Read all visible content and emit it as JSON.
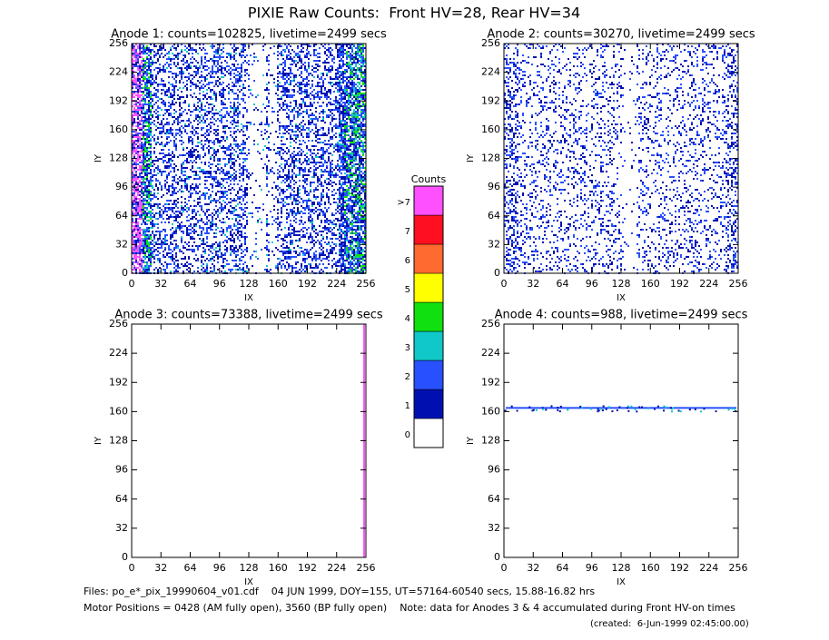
{
  "title": "PIXIE Raw Counts:  Front HV=28, Rear HV=34",
  "chart_data": [
    {
      "type": "image",
      "title": "Anode 1: counts=102825, livetime=2499 secs",
      "xlabel": "IX",
      "ylabel": "IY",
      "xlim": [
        0,
        256
      ],
      "ylim": [
        0,
        256
      ],
      "xticks": [
        0,
        32,
        64,
        96,
        128,
        160,
        192,
        224,
        256
      ],
      "yticks": [
        0,
        32,
        64,
        96,
        128,
        160,
        192,
        224,
        256
      ]
    },
    {
      "type": "image",
      "title": "Anode 2: counts=30270, livetime=2499 secs",
      "xlabel": "IX",
      "ylabel": "IY",
      "xlim": [
        0,
        256
      ],
      "ylim": [
        0,
        256
      ],
      "xticks": [
        0,
        32,
        64,
        96,
        128,
        160,
        192,
        224,
        256
      ],
      "yticks": [
        0,
        32,
        64,
        96,
        128,
        160,
        192,
        224,
        256
      ]
    },
    {
      "type": "image",
      "title": "Anode 3: counts=73388, livetime=2499 secs",
      "xlabel": "IX",
      "ylabel": "IY",
      "xlim": [
        0,
        256
      ],
      "ylim": [
        0,
        256
      ],
      "xticks": [
        0,
        32,
        64,
        96,
        128,
        160,
        192,
        224,
        256
      ],
      "yticks": [
        0,
        32,
        64,
        96,
        128,
        160,
        192,
        224,
        256
      ]
    },
    {
      "type": "image",
      "title": "Anode 4: counts=988, livetime=2499 secs",
      "xlabel": "IX",
      "ylabel": "IY",
      "xlim": [
        0,
        256
      ],
      "ylim": [
        0,
        256
      ],
      "xticks": [
        0,
        32,
        64,
        96,
        128,
        160,
        192,
        224,
        256
      ],
      "yticks": [
        0,
        32,
        64,
        96,
        128,
        160,
        192,
        224,
        256
      ]
    },
    {
      "type": "colorbar",
      "title": "Counts",
      "categories": [
        "0",
        "1",
        "2",
        "3",
        "4",
        "5",
        "6",
        "7",
        ">7"
      ],
      "colors": [
        "#ffffff",
        "#0010b0",
        "#2850ff",
        "#10c8c8",
        "#10e010",
        "#ffff00",
        "#ff6a30",
        "#ff1020",
        "#ff50ff"
      ]
    }
  ],
  "footer": {
    "files": "Files: po_e*_pix_19990604_v01.cdf    04 JUN 1999, DOY=155, UT=57164-60540 secs, 15.88-16.82 hrs",
    "motor": "Motor Positions = 0428 (AM fully open), 3560 (BP fully open)    Note: data for Anodes 3 & 4 accumulated during Front HV-on times",
    "created": "(created:  6-Jun-1999 02:45:00.00)"
  }
}
